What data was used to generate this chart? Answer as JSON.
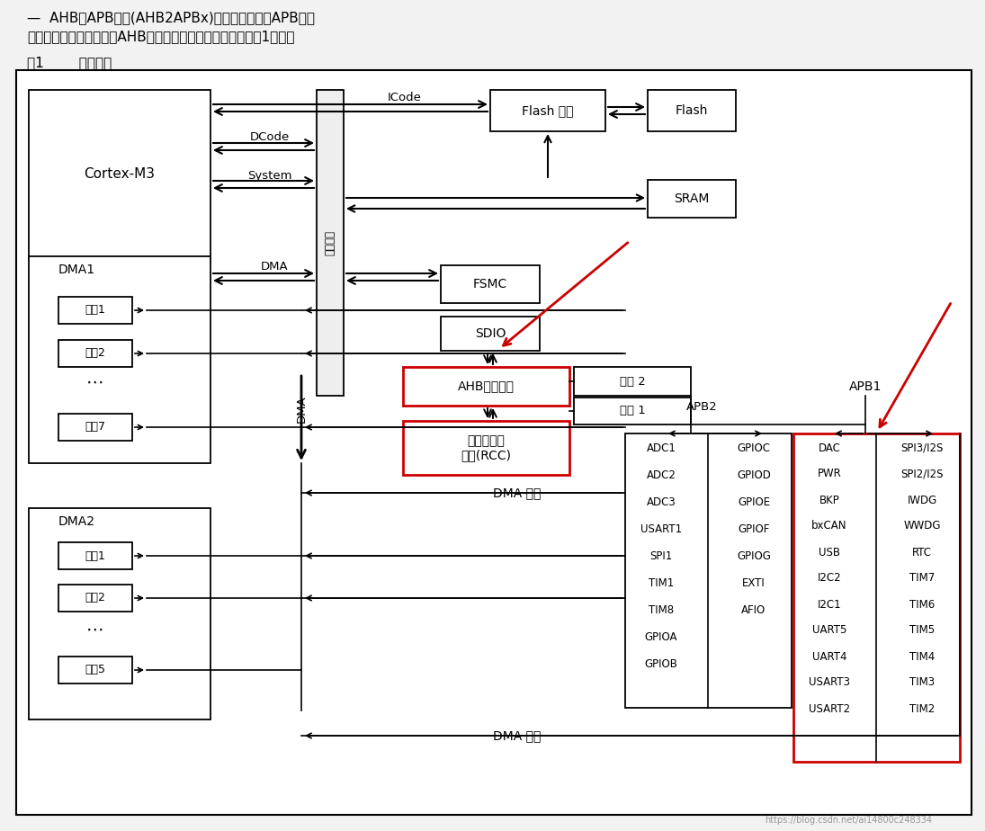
{
  "header1": "—  AHB到APB的桥(AHB2APBx)，它连接所有的APB设备",
  "header2": "这些都是通过一个多级的AHB总线构架相互连接的，如下图图1所示：",
  "fig_label": "图1        系统结构",
  "bg": "#f2f2f2",
  "white": "#ffffff",
  "black": "#000000",
  "red": "#cc0000",
  "apb2_left": [
    "ADC1",
    "ADC2",
    "ADC3",
    "USART1",
    "SPI1",
    "TIM1",
    "TIM8",
    "GPIOA",
    "GPIOB"
  ],
  "apb2_right": [
    "GPIOC",
    "GPIOD",
    "GPIOE",
    "GPIOF",
    "GPIOG",
    "EXTI",
    "AFIO"
  ],
  "apb1_left": [
    "DAC",
    "PWR",
    "BKP",
    "bxCAN",
    "USB",
    "I2C2",
    "I2C1",
    "UART5",
    "UART4",
    "USART3",
    "USART2"
  ],
  "apb1_right": [
    "SPI3/I2S",
    "SPI2/I2S",
    "IWDG",
    "WWDG",
    "RTC",
    "TIM7",
    "TIM6",
    "TIM5",
    "TIM4",
    "TIM3",
    "TIM2"
  ],
  "dma1_ch": [
    "通道1",
    "通道2",
    "通道7"
  ],
  "dma2_ch": [
    "通道1",
    "通道2",
    "通道5"
  ],
  "bus_matrix": "总线矩阵",
  "ahb_bus": "AHB系统总线",
  "rcc": "复位和时钟\n控制(RCC)",
  "bridge2": "桥接 2",
  "bridge1": "桥接 1",
  "dma_req": "DMA 请求"
}
